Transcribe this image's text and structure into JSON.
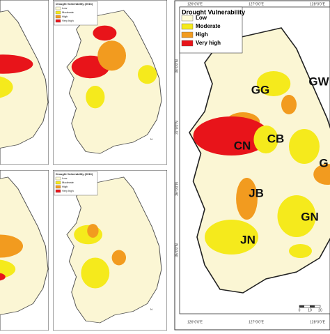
{
  "main_map": {
    "legend": {
      "title": "Drought Vulnerability",
      "items": [
        {
          "label": "Low",
          "color": "#fffbd6"
        },
        {
          "label": "Moderate",
          "color": "#f5ea1c"
        },
        {
          "label": "High",
          "color": "#f29b1f"
        },
        {
          "label": "Very high",
          "color": "#e8141a"
        }
      ]
    },
    "regions": {
      "gg": "GG",
      "gw": "GW",
      "cn": "CN",
      "cb": "CB",
      "jb": "JB",
      "gn": "GN",
      "jn": "JN",
      "gb": "G"
    },
    "lon_labels": [
      "126°0'0\"E",
      "127°0'0\"E",
      "128°0'0\"E"
    ],
    "lat_labels": [
      "38°0'0\"N",
      "37°0'0\"N",
      "36°0'0\"N",
      "35°0'0\"N"
    ],
    "scale": [
      "0",
      "10",
      "20"
    ]
  },
  "small_maps": [
    {
      "title": "Drought Vulnerability (2016)",
      "items": [
        "Low",
        "Moderate",
        "High",
        "Very high"
      ],
      "north": "N"
    },
    {
      "title": "Drought Vulnerability (2016)",
      "items": [
        "Low",
        "Moderate",
        "High",
        "Very high"
      ],
      "north": "N"
    }
  ]
}
